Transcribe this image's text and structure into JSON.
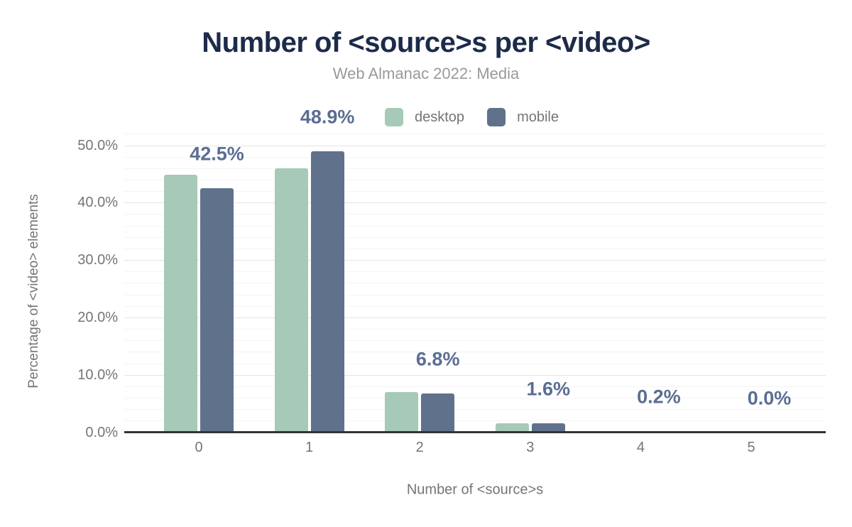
{
  "title": "Number of <source>s per <video>",
  "subtitle": "Web Almanac 2022: Media",
  "legend": [
    {
      "label": "desktop",
      "color": "#a7c9b8"
    },
    {
      "label": "mobile",
      "color": "#60718c"
    }
  ],
  "chart_data": {
    "type": "bar",
    "title": "Number of <source>s per <video>",
    "subtitle": "Web Almanac 2022: Media",
    "categories": [
      "0",
      "1",
      "2",
      "3",
      "4",
      "5"
    ],
    "series": [
      {
        "name": "desktop",
        "color": "#a7c9b8",
        "values": [
          44.9,
          46.0,
          7.0,
          1.5,
          0.2,
          0.0
        ]
      },
      {
        "name": "mobile",
        "color": "#60718c",
        "values": [
          42.5,
          48.9,
          6.8,
          1.6,
          0.2,
          0.0
        ]
      }
    ],
    "bar_labels": [
      "42.5%",
      "48.9%",
      "6.8%",
      "1.6%",
      "0.2%",
      "0.0%"
    ],
    "bar_labels_series": "mobile",
    "xlabel": "Number of <source>s",
    "ylabel": "Percentage of <video> elements",
    "y_ticks": [
      "0.0%",
      "10.0%",
      "20.0%",
      "30.0%",
      "40.0%",
      "50.0%"
    ],
    "ylim": [
      0,
      50
    ],
    "grid": "horizontal, major every 10%, minor every 2%",
    "legend_position": "top-center"
  },
  "colors": {
    "title": "#1d2b4a",
    "subtitle": "#999999",
    "axis_text": "#757575",
    "value_label": "#5b6d92",
    "grid_major": "#e4e4e4",
    "grid_minor": "#f4f4f4",
    "axis_line": "#333333",
    "background": "#ffffff"
  }
}
